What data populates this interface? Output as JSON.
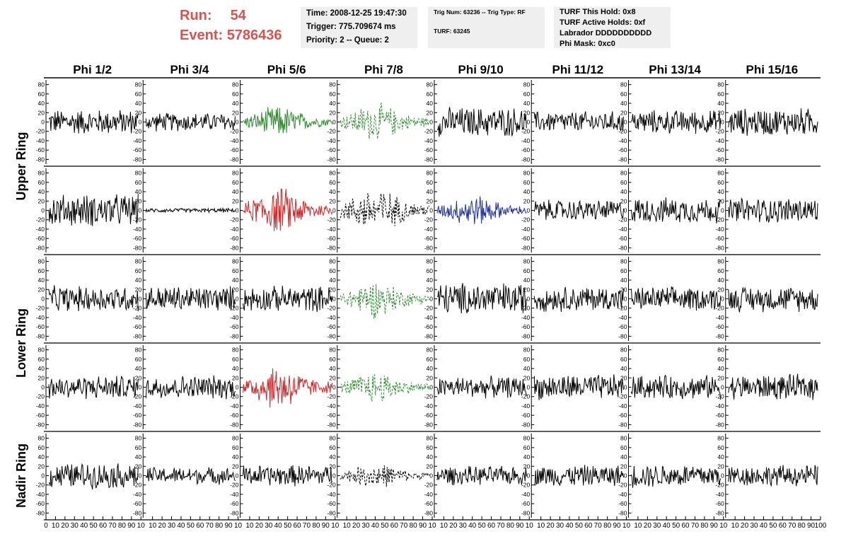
{
  "header": {
    "run_label": "Run:",
    "run_value": "54",
    "event_label": "Event:",
    "event_value": "5786436"
  },
  "time_box": {
    "time": "Time: 2008-12-25 19:47:30",
    "trigger": "Trigger: 775.709674 ms",
    "priority": "Priority: 2 -- Queue: 2"
  },
  "trig_box": {
    "trig": "Trig Num: 63236 -- Trig Type: RF",
    "turf": "TURF: 63245"
  },
  "turf_box": {
    "this_hold": "TURF This Hold: 0x8",
    "active_holds": "TURF Active Holds: 0xf",
    "labrador": "Labrador DDDDDDDDDD",
    "phi_mask": "Phi Mask: 0xc0"
  },
  "columns": [
    "Phi 1/2",
    "Phi 3/4",
    "Phi 5/6",
    "Phi 7/8",
    "Phi 9/10",
    "Phi 11/12",
    "Phi 13/14",
    "Phi 15/16"
  ],
  "row_labels": [
    {
      "text": "Upper Ring",
      "rows": [
        0,
        1
      ]
    },
    {
      "text": "Lower Ring",
      "rows": [
        2,
        3
      ]
    },
    {
      "text": "Nadir Ring",
      "rows": [
        4
      ]
    }
  ],
  "colors": {
    "header_red": "#d9534f",
    "info_bg": "#efefef",
    "trace_black": "#000000",
    "trace_green": "#2e8b2e",
    "trace_red": "#cc2a2a",
    "trace_blue": "#1f2f9a"
  },
  "chart_data": {
    "type": "line",
    "ylim": [
      -90,
      90
    ],
    "xlim": [
      0,
      100
    ],
    "y_ticks": [
      80,
      60,
      40,
      20,
      0,
      -20,
      -40,
      -60,
      -80
    ],
    "x_ticks": [
      0,
      10,
      20,
      30,
      40,
      50,
      60,
      70,
      80,
      90,
      100
    ],
    "x_tick_label_sequence": [
      "0",
      "10",
      "20",
      "30",
      "40",
      "50",
      "60",
      "70",
      "80",
      "90",
      "10",
      "10",
      "20",
      "30",
      "40",
      "50",
      "60",
      "70",
      "80",
      "90",
      "10",
      "10",
      "20",
      "30",
      "40",
      "50",
      "60",
      "70",
      "80",
      "90",
      "10",
      "10",
      "20",
      "30",
      "40",
      "50",
      "60",
      "70",
      "80",
      "90",
      "10",
      "10",
      "20",
      "30",
      "40",
      "50",
      "60",
      "70",
      "80",
      "90",
      "10",
      "10",
      "20",
      "30",
      "40",
      "50",
      "60",
      "70",
      "80",
      "90",
      "10",
      "10",
      "20",
      "30",
      "40",
      "50",
      "60",
      "70",
      "80",
      "90",
      "10",
      "10",
      "20",
      "30",
      "40",
      "50",
      "60",
      "70",
      "80",
      "90",
      "100"
    ],
    "panels": [
      [
        {
          "style": "solid",
          "color": "#000000",
          "amp": 30,
          "env": "flat"
        },
        {
          "style": "solid",
          "color": "#000000",
          "amp": 22,
          "env": "flat"
        },
        {
          "style": "solid",
          "color": "#2e8b2e",
          "amp": 38,
          "env": "burst"
        },
        {
          "style": "dashed",
          "color": "#2e8b2e",
          "amp": 45,
          "env": "burst"
        },
        {
          "style": "solid",
          "color": "#000000",
          "amp": 35,
          "env": "flat"
        },
        {
          "style": "solid",
          "color": "#000000",
          "amp": 25,
          "env": "flat"
        },
        {
          "style": "solid",
          "color": "#000000",
          "amp": 28,
          "env": "flat"
        },
        {
          "style": "solid",
          "color": "#000000",
          "amp": 33,
          "env": "flat"
        }
      ],
      [
        {
          "style": "solid",
          "color": "#000000",
          "amp": 38,
          "env": "flat"
        },
        {
          "style": "solid",
          "color": "#000000",
          "amp": 5,
          "env": "flat"
        },
        {
          "style": "solid",
          "color": "#cc2a2a",
          "amp": 55,
          "env": "burst"
        },
        {
          "style": "dashed",
          "color": "#000000",
          "amp": 55,
          "env": "burst"
        },
        {
          "style": "solid",
          "color": "#1f2f9a",
          "amp": 38,
          "env": "burst"
        },
        {
          "style": "solid",
          "color": "#000000",
          "amp": 25,
          "env": "flat"
        },
        {
          "style": "solid",
          "color": "#000000",
          "amp": 30,
          "env": "flat"
        },
        {
          "style": "solid",
          "color": "#000000",
          "amp": 30,
          "env": "flat"
        }
      ],
      [
        {
          "style": "solid",
          "color": "#000000",
          "amp": 30,
          "env": "flat"
        },
        {
          "style": "solid",
          "color": "#000000",
          "amp": 30,
          "env": "flat"
        },
        {
          "style": "solid",
          "color": "#000000",
          "amp": 30,
          "env": "flat"
        },
        {
          "style": "dashed",
          "color": "#2e8b2e",
          "amp": 45,
          "env": "burst"
        },
        {
          "style": "solid",
          "color": "#000000",
          "amp": 38,
          "env": "flat"
        },
        {
          "style": "solid",
          "color": "#000000",
          "amp": 30,
          "env": "flat"
        },
        {
          "style": "solid",
          "color": "#000000",
          "amp": 28,
          "env": "flat"
        },
        {
          "style": "solid",
          "color": "#000000",
          "amp": 30,
          "env": "flat"
        }
      ],
      [
        {
          "style": "solid",
          "color": "#000000",
          "amp": 28,
          "env": "flat"
        },
        {
          "style": "solid",
          "color": "#000000",
          "amp": 28,
          "env": "flat"
        },
        {
          "style": "solid",
          "color": "#cc2a2a",
          "amp": 55,
          "env": "burst"
        },
        {
          "style": "dashed",
          "color": "#2e8b2e",
          "amp": 38,
          "env": "burst"
        },
        {
          "style": "solid",
          "color": "#000000",
          "amp": 25,
          "env": "flat"
        },
        {
          "style": "solid",
          "color": "#000000",
          "amp": 30,
          "env": "flat"
        },
        {
          "style": "solid",
          "color": "#000000",
          "amp": 28,
          "env": "flat"
        },
        {
          "style": "solid",
          "color": "#000000",
          "amp": 30,
          "env": "flat"
        }
      ],
      [
        {
          "style": "solid",
          "color": "#000000",
          "amp": 30,
          "env": "flat"
        },
        {
          "style": "solid",
          "color": "#000000",
          "amp": 20,
          "env": "flat"
        },
        {
          "style": "solid",
          "color": "#000000",
          "amp": 25,
          "env": "flat"
        },
        {
          "style": "dashed",
          "color": "#000000",
          "amp": 30,
          "env": "burst"
        },
        {
          "style": "solid",
          "color": "#000000",
          "amp": 22,
          "env": "flat"
        },
        {
          "style": "solid",
          "color": "#000000",
          "amp": 25,
          "env": "flat"
        },
        {
          "style": "solid",
          "color": "#000000",
          "amp": 28,
          "env": "flat"
        },
        {
          "style": "solid",
          "color": "#000000",
          "amp": 25,
          "env": "flat"
        }
      ]
    ]
  }
}
